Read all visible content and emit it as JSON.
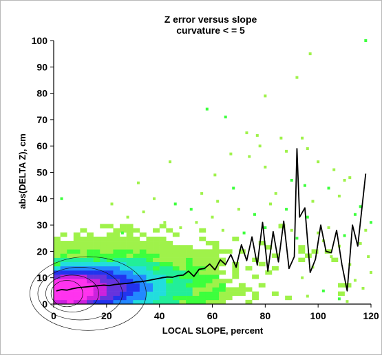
{
  "chart_data": {
    "type": "heatmap",
    "title": "Z error versus slope",
    "subtitle": "curvature < = 5",
    "xlabel": "LOCAL SLOPE, percent",
    "ylabel": "abs(DELTA Z), cm",
    "xlim": [
      0,
      120
    ],
    "ylim": [
      0,
      100
    ],
    "xticks": [
      "0",
      "20",
      "40",
      "60",
      "80",
      "100",
      "120"
    ],
    "yticks": [
      "0",
      "10",
      "20",
      "30",
      "40",
      "50",
      "60",
      "70",
      "80",
      "90",
      "100"
    ],
    "grid": false,
    "density_colors": [
      "#9ff24a",
      "#3dff3d",
      "#22ee99",
      "#22dddd",
      "#2288ff",
      "#2233ee",
      "#6633dd",
      "#cc22dd",
      "#ff33ee"
    ],
    "contour_color": "#111111",
    "series": [
      {
        "type": "line",
        "x": [
          1,
          3,
          5,
          7,
          9,
          11,
          13,
          15,
          17,
          19,
          21,
          23,
          25,
          27,
          29,
          31,
          33,
          35,
          37,
          39,
          41,
          43,
          45,
          47,
          49,
          51,
          53,
          55,
          57,
          59,
          61,
          63,
          65,
          67,
          69,
          71,
          73,
          75,
          77,
          79,
          81,
          83,
          85,
          87,
          89,
          91,
          92,
          93,
          95,
          97,
          99,
          101,
          103,
          105,
          107,
          109,
          111,
          113,
          115,
          118
        ],
        "y": [
          5,
          5.5,
          5.3,
          5.8,
          6.2,
          6.4,
          6.6,
          6.8,
          7,
          7.2,
          7,
          7.4,
          7.6,
          7.8,
          8,
          8.4,
          8.5,
          8.8,
          9.2,
          9.6,
          10,
          10.3,
          10.2,
          10.8,
          11,
          12.5,
          10.5,
          13.2,
          13.5,
          15.2,
          13,
          16.8,
          15,
          18.8,
          14,
          22.5,
          16.5,
          25.5,
          14.8,
          31,
          12.5,
          27.5,
          16,
          31.5,
          13.5,
          18,
          59,
          33,
          36.5,
          12,
          17,
          30,
          20,
          19.5,
          28,
          15,
          5,
          30,
          22,
          49.5
        ]
      }
    ],
    "scatter_bins": [
      [
        92,
        86
      ],
      [
        97,
        95
      ],
      [
        118,
        100
      ],
      [
        58,
        74
      ],
      [
        65,
        71
      ],
      [
        80,
        79
      ],
      [
        77,
        64
      ],
      [
        86,
        63
      ],
      [
        94,
        63
      ],
      [
        73,
        65
      ],
      [
        78,
        60
      ],
      [
        88,
        58
      ],
      [
        96,
        59
      ],
      [
        67,
        57
      ],
      [
        100,
        54
      ],
      [
        44,
        54
      ],
      [
        80,
        52
      ],
      [
        74,
        56
      ],
      [
        110,
        47
      ],
      [
        106,
        51
      ],
      [
        104,
        44
      ],
      [
        61,
        49
      ],
      [
        32,
        46
      ],
      [
        90,
        47
      ],
      [
        84,
        42
      ],
      [
        95,
        45
      ],
      [
        112,
        48
      ],
      [
        3,
        40
      ],
      [
        22,
        38
      ],
      [
        38,
        40
      ],
      [
        56,
        42
      ],
      [
        62,
        39
      ],
      [
        68,
        44
      ],
      [
        70,
        36
      ],
      [
        82,
        38
      ],
      [
        88,
        36
      ],
      [
        98,
        39
      ],
      [
        108,
        41
      ],
      [
        116,
        37
      ],
      [
        52,
        36
      ],
      [
        46,
        38
      ],
      [
        28,
        33
      ],
      [
        34,
        35
      ],
      [
        42,
        31
      ],
      [
        60,
        33
      ],
      [
        76,
        34
      ],
      [
        86,
        30
      ],
      [
        96,
        33
      ],
      [
        104,
        29
      ],
      [
        114,
        34
      ],
      [
        120,
        31
      ],
      [
        100,
        27
      ],
      [
        110,
        26
      ],
      [
        118,
        28
      ],
      [
        92,
        25
      ],
      [
        26,
        27
      ],
      [
        48,
        29
      ],
      [
        54,
        31
      ],
      [
        64,
        28
      ],
      [
        72,
        27
      ],
      [
        80,
        29
      ],
      [
        90,
        28
      ],
      [
        102,
        24
      ],
      [
        108,
        22
      ],
      [
        116,
        23
      ],
      [
        119,
        18
      ],
      [
        105,
        18
      ],
      [
        112,
        15
      ],
      [
        98,
        14
      ],
      [
        114,
        9
      ],
      [
        117,
        6
      ],
      [
        102,
        5
      ],
      [
        96,
        3
      ],
      [
        108,
        2
      ],
      [
        111,
        1
      ],
      [
        120,
        12
      ],
      [
        94,
        10
      ]
    ]
  }
}
